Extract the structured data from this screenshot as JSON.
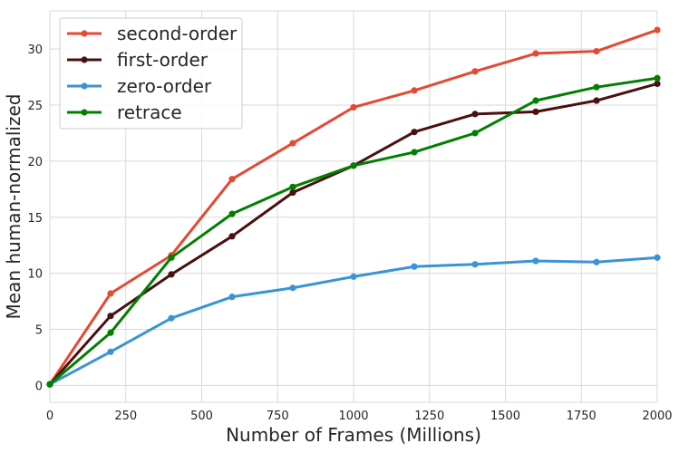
{
  "chart_data": {
    "type": "line",
    "title": "",
    "xlabel": "Number of Frames (Millions)",
    "ylabel": "Mean human-normalized",
    "xlim": [
      0,
      2000
    ],
    "ylim": [
      -1.5,
      33.4
    ],
    "xticks": [
      0,
      250,
      500,
      750,
      1000,
      1250,
      1500,
      1750,
      2000
    ],
    "yticks": [
      0,
      5,
      10,
      15,
      20,
      25,
      30
    ],
    "grid": true,
    "legend_position": "top-left",
    "x": [
      0,
      200,
      400,
      600,
      800,
      1000,
      1200,
      1400,
      1600,
      1800,
      2000
    ],
    "series": [
      {
        "name": "second-order",
        "color": "#e24a33",
        "values": [
          0.1,
          8.2,
          11.6,
          18.4,
          21.6,
          24.8,
          26.3,
          28.0,
          29.6,
          29.8,
          31.7
        ]
      },
      {
        "name": "first-order",
        "color": "#4a1010",
        "values": [
          0.1,
          6.2,
          9.9,
          13.3,
          17.2,
          19.6,
          22.6,
          24.2,
          24.4,
          25.4,
          26.9
        ]
      },
      {
        "name": "zero-order",
        "color": "#3a94d4",
        "values": [
          0.1,
          3.0,
          6.0,
          7.9,
          8.7,
          9.7,
          10.6,
          10.8,
          11.1,
          11.0,
          11.4
        ]
      },
      {
        "name": "retrace",
        "color": "#008000",
        "values": [
          0.1,
          4.7,
          11.4,
          15.3,
          17.7,
          19.6,
          20.8,
          22.5,
          25.4,
          26.6,
          27.4
        ]
      }
    ]
  }
}
